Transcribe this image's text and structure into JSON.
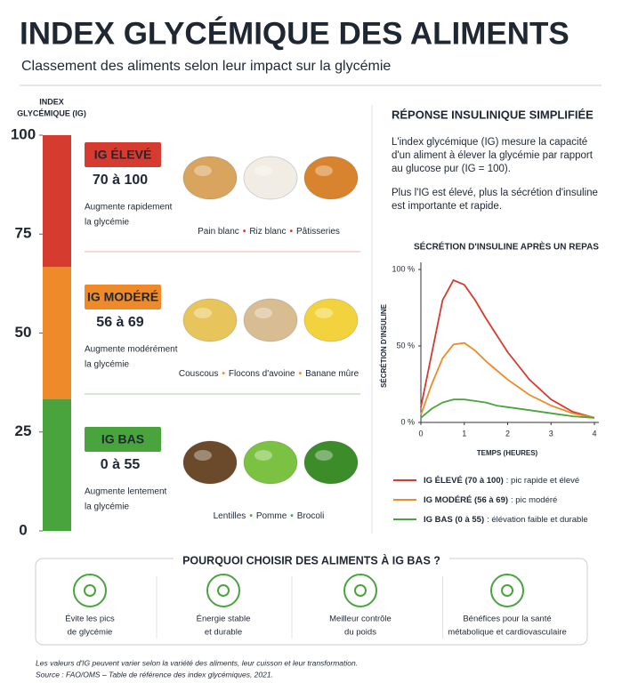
{
  "header": {
    "title": "INDEX GLYCÉMIQUE DES ALIMENTS",
    "subtitle": "Classement des aliments selon leur impact sur la glycémie"
  },
  "scale": {
    "label": [
      "INDEX",
      "GLYCÉMIQUE (IG)"
    ],
    "range": [
      0,
      100
    ],
    "ticks": [
      0,
      25,
      50,
      75,
      100
    ]
  },
  "groups": [
    {
      "badge": "IG ÉLEVÉ",
      "range": "70 à 100",
      "description": [
        "Augmente rapidement",
        "la glycémie"
      ],
      "foods": [
        "Pain blanc",
        "Riz blanc",
        "Pâtisseries"
      ],
      "color": "#d63b2f"
    },
    {
      "badge": "IG MODÉRÉ",
      "range": "56 à 69",
      "description": [
        "Augmente modérément",
        "la glycémie"
      ],
      "foods": [
        "Couscous",
        "Flocons d'avoine",
        "Banane mûre"
      ],
      "color": "#ee8a2a"
    },
    {
      "badge": "IG BAS",
      "range": "0 à 55",
      "description": [
        "Augmente lentement",
        "la glycémie"
      ],
      "foods": [
        "Lentilles",
        "Pomme",
        "Brocoli"
      ],
      "color": "#4aa43e"
    }
  ],
  "insulin": {
    "heading": "RÉPONSE INSULINIQUE SIMPLIFIÉE",
    "paragraphs": [
      [
        "L'index glycémique (IG) mesure la capacité",
        "d'un aliment à élever la glycémie par rapport",
        "au glucose pur (IG = 100)."
      ],
      [
        "Plus l'IG est élevé, plus la sécrétion d'insuline",
        "est importante et rapide."
      ]
    ]
  },
  "chart_data": {
    "type": "line",
    "title": "SÉCRÉTION D'INSULINE APRÈS UN REPAS",
    "xlabel": "TEMPS (HEURES)",
    "ylabel": "SÉCRÉTION D'INSULINE",
    "x": [
      0,
      0.25,
      0.5,
      0.75,
      1,
      1.25,
      1.5,
      1.75,
      2,
      2.5,
      3,
      3.5,
      4
    ],
    "xlim": [
      0,
      4
    ],
    "xticks": [
      0,
      1,
      2,
      3,
      4
    ],
    "ylim": [
      0,
      100
    ],
    "yticks": [
      {
        "value": 0,
        "label": "0 %"
      },
      {
        "value": 50,
        "label": "50 %"
      },
      {
        "value": 100,
        "label": "100 %"
      }
    ],
    "series": [
      {
        "name": "IG ÉLEVÉ (70 à 100)",
        "description": ": pic rapide et élevé",
        "color": "#d63b2f",
        "values": [
          10,
          45,
          80,
          93,
          90,
          80,
          68,
          57,
          46,
          28,
          15,
          7,
          3
        ]
      },
      {
        "name": "IG MODÉRÉ (56 à 69)",
        "description": ": pic modéré",
        "color": "#ee8a2a",
        "values": [
          5,
          25,
          42,
          51,
          52,
          47,
          40,
          34,
          28,
          18,
          11,
          6,
          3
        ]
      },
      {
        "name": "IG BAS (0 à 55)",
        "description": ": élévation faible et durable",
        "color": "#4aa43e",
        "values": [
          3,
          9,
          13,
          15,
          15,
          14,
          13,
          11,
          10,
          8,
          6,
          4,
          3
        ]
      }
    ]
  },
  "benefits": {
    "title": "POURQUOI CHOISIR DES ALIMENTS À IG BAS ?",
    "items": [
      [
        "Évite les pics",
        "de glycémie"
      ],
      [
        "Énergie stable",
        "et durable"
      ],
      [
        "Meilleur contrôle",
        "du poids"
      ],
      [
        "Bénéfices pour la santé",
        "métabolique et cardiovasculaire"
      ]
    ]
  },
  "footnotes": [
    "Les valeurs d'IG peuvent varier selon la variété des aliments, leur cuisson et leur transformation.",
    "Source : FAO/OMS – Table de référence des index glycémiques, 2021."
  ]
}
